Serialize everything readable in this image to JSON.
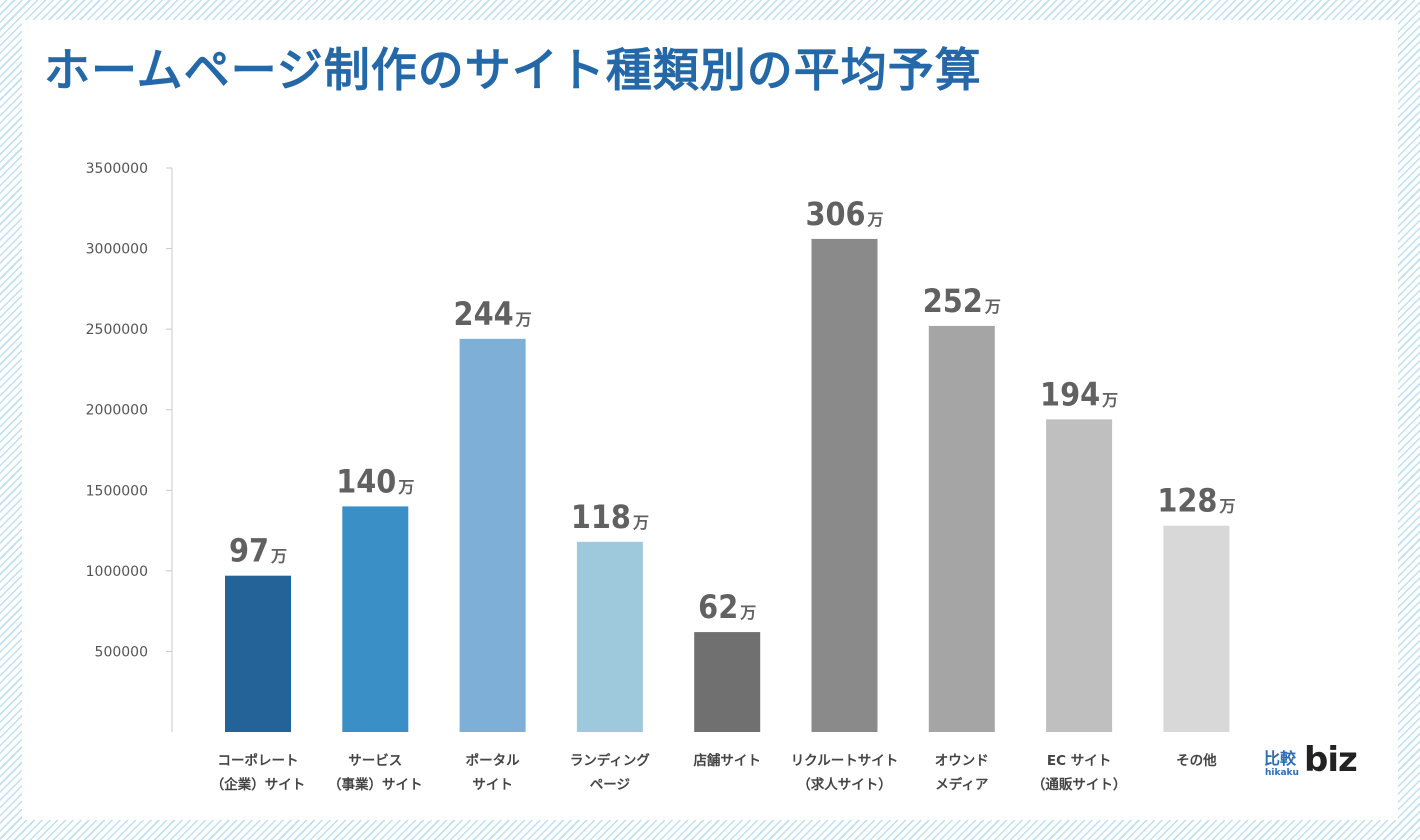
{
  "chart_data": {
    "type": "bar",
    "title": "ホームページ制作のサイト種類別の平均予算",
    "categories": [
      [
        "コーポレート",
        "（企業）サイト"
      ],
      [
        "サービス",
        "（事業）サイト"
      ],
      [
        "ポータル",
        "サイト"
      ],
      [
        "ランディング",
        "ページ"
      ],
      [
        "店舗サイト"
      ],
      [
        "リクルートサイト",
        "（求人サイト）"
      ],
      [
        "オウンド",
        "メディア"
      ],
      [
        "EC サイト",
        "（通販サイト）"
      ],
      [
        "その他"
      ]
    ],
    "values": [
      970000,
      1400000,
      2440000,
      1180000,
      620000,
      3060000,
      2520000,
      1940000,
      1280000
    ],
    "data_labels": [
      "97",
      "140",
      "244",
      "118",
      "62",
      "306",
      "252",
      "194",
      "128"
    ],
    "data_label_unit": "万",
    "colors": [
      "#236398",
      "#3a8fc6",
      "#7dafd7",
      "#9ec9dc",
      "#707070",
      "#8a8a8a",
      "#a5a5a5",
      "#bfbfbf",
      "#d8d8d8"
    ],
    "yticks": [
      500000,
      1000000,
      1500000,
      2000000,
      2500000,
      3000000,
      3500000
    ],
    "ytick_labels": [
      "500000",
      "1000000",
      "1500000",
      "2000000",
      "2500000",
      "3000000",
      "3500000"
    ],
    "ylim": [
      0,
      3500000
    ],
    "grid": false,
    "legend": "none"
  },
  "logo": {
    "kanji": "比較",
    "roman": "hikaku",
    "word": "biz"
  }
}
